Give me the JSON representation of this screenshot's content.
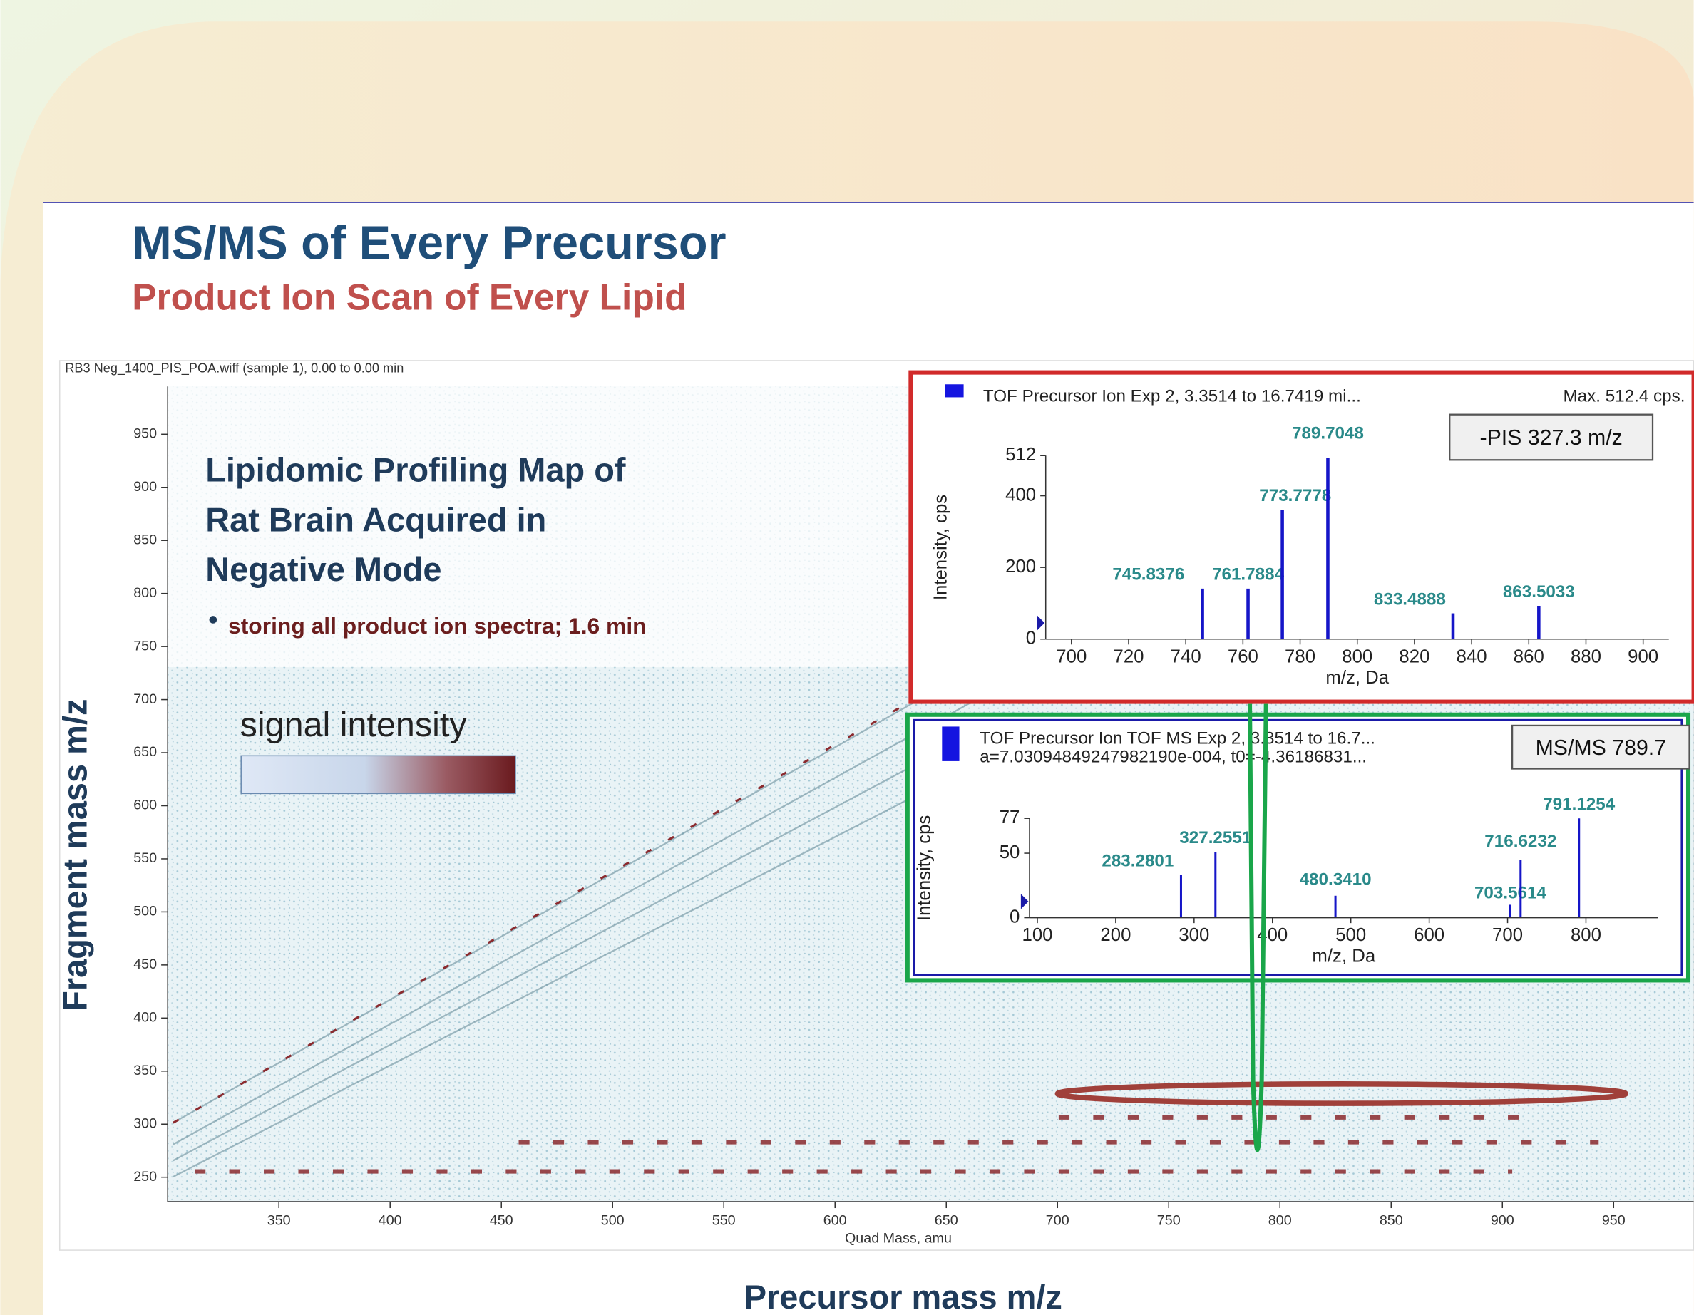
{
  "slide": {
    "title": "MS/MS of Every Precursor",
    "subtitle": "Product Ion Scan of Every Lipid",
    "heading": "Lipidomic Profiling Map of Rat Brain Acquired in Negative Mode",
    "bullet": "storing all product ion spectra; 1.6 min",
    "legend_label": "signal intensity",
    "y_axis_label": "Fragment mass m/z",
    "x_axis_label": "Precursor mass m/z"
  },
  "chart_data": [
    {
      "type": "heatmap",
      "title": "RB3 Neg_1400_PIS_POA.wiff (sample 1), 0.00 to 0.00 min",
      "x_label": "Quad Mass, amu",
      "xlim": [
        300,
        986
      ],
      "ylim": [
        227,
        995
      ],
      "xticks": [
        350,
        400,
        450,
        500,
        550,
        600,
        650,
        700,
        750,
        800,
        850,
        900,
        950
      ],
      "yticks": [
        250,
        300,
        350,
        400,
        450,
        500,
        550,
        600,
        650,
        700,
        750,
        800,
        850,
        900,
        950
      ]
    },
    {
      "type": "stem",
      "title": "TOF Precursor Ion Exp 2, 3.3514 to 16.7419 mi...",
      "max_label": "Max. 512.4 cps.",
      "badge": "-PIS 327.3 m/z",
      "y_label": "Intensity, cps",
      "x_label": "m/z, Da",
      "color": "#1515c8",
      "xlim": [
        691,
        909
      ],
      "ylim": [
        0,
        512
      ],
      "xticks": [
        700,
        720,
        740,
        760,
        780,
        800,
        820,
        840,
        860,
        880,
        900
      ],
      "yticks": [
        0,
        200,
        400,
        512
      ],
      "x": [
        745.8376,
        761.7884,
        773.7778,
        789.7048,
        833.4888,
        863.5033
      ],
      "x_labels": [
        "745.8376",
        "761.7884",
        "773.7778",
        "789.7048",
        "833.4888",
        "863.5033"
      ],
      "values": [
        141,
        141,
        361,
        505,
        72,
        93
      ]
    },
    {
      "type": "stem",
      "title": "TOF Precursor Ion TOF MS Exp 2, 3.3514 to 16.7...",
      "title2": "a=7.03094849247982190e-004, t0=-4.36186831...",
      "badge": "MS/MS 789.7",
      "y_label": "Intensity, cps",
      "x_label": "m/z, Da",
      "color": "#1515c8",
      "xlim": [
        90,
        892
      ],
      "ylim": [
        0,
        77
      ],
      "xticks": [
        100,
        200,
        300,
        400,
        500,
        600,
        700,
        800
      ],
      "yticks": [
        0,
        50,
        77
      ],
      "x": [
        283.2801,
        327.2551,
        480.341,
        703.5614,
        716.6232,
        791.1254
      ],
      "x_labels": [
        "283.2801",
        "327.2551",
        "480.3410",
        "703.5614",
        "716.6232",
        "791.1254"
      ],
      "values": [
        33,
        51,
        17,
        10,
        45,
        77
      ]
    }
  ]
}
